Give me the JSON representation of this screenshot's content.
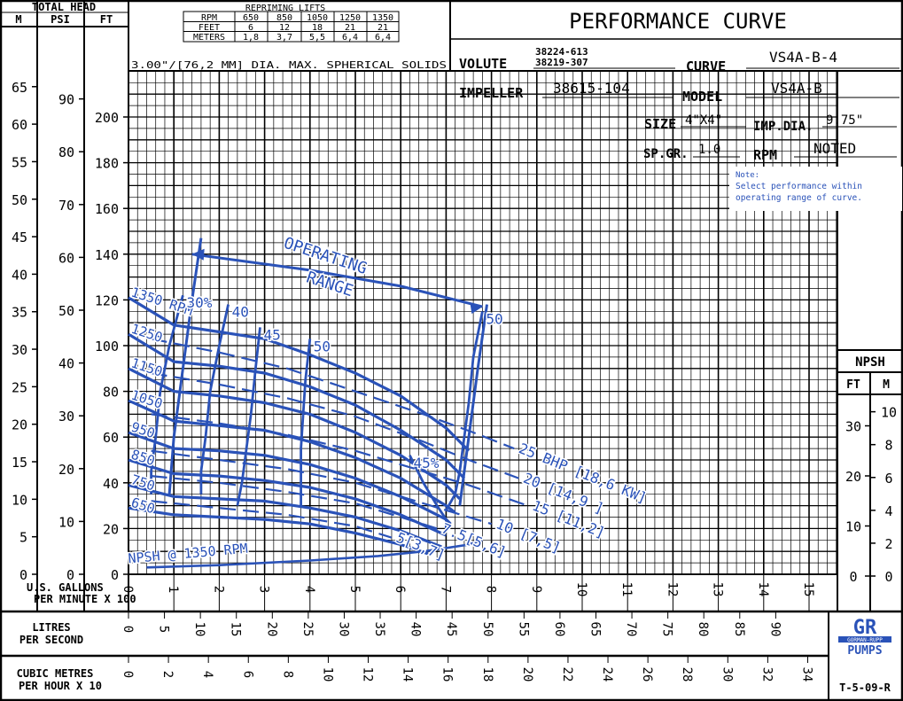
{
  "header": {
    "total_head": "TOTAL HEAD",
    "unit_m": "M",
    "unit_psi": "PSI",
    "unit_ft": "FT"
  },
  "repriming": {
    "title": "REPRIMING LIFTS",
    "row_rpm_label": "RPM",
    "row_feet_label": "FEET",
    "row_meters_label": "METERS",
    "rpm": [
      "650",
      "850",
      "1050",
      "1250",
      "1350"
    ],
    "feet": [
      "6",
      "12",
      "18",
      "21",
      "21"
    ],
    "meters": [
      "1,8",
      "3,7",
      "5,5",
      "6,4",
      "6,4"
    ],
    "solids_note": "3.00\"/[76,2 MM] DIA. MAX. SPHERICAL SOLIDS"
  },
  "title_block": {
    "title": "PERFORMANCE CURVE",
    "volute_label": "VOLUTE",
    "volute_value_1": "38224-613",
    "volute_value_2": "38219-307",
    "curve_label": "CURVE",
    "curve_value": "VS4A-B-4",
    "impeller_label": "IMPELLER",
    "impeller_value": "38615-104",
    "model_label": "MODEL",
    "model_value": "VS4A-B",
    "size_label": "SIZE",
    "size_value": "4\"X4\"",
    "impdia_label": "IMP.DIA.",
    "impdia_value": "9.75\"",
    "spgr_label": "SP.GR.",
    "spgr_value": "1.0",
    "rpm_label": "RPM",
    "rpm_value": "NOTED",
    "note_title": "Note:",
    "note_line1": "Select performance within",
    "note_line2": "operating range of curve."
  },
  "npsh": {
    "title": "NPSH",
    "unit_ft": "FT",
    "unit_m": "M",
    "ft_ticks": [
      "0",
      "10",
      "20",
      "30"
    ],
    "m_ticks": [
      "0",
      "2",
      "4",
      "6",
      "8",
      "10"
    ]
  },
  "bottom": {
    "gpm_label_1": "U.S. GALLONS",
    "gpm_label_2": "PER MINUTE X 100",
    "lps_label_1": "LITRES",
    "lps_label_2": "PER SECOND",
    "cmh_label_1": "CUBIC METRES",
    "cmh_label_2": "PER HOUR X 10",
    "drawing_no": "T-5-09-R",
    "logo_text": "GR",
    "logo_sub_1": "GORMAN-RUPP",
    "logo_sub_2": "PUMPS"
  },
  "colors": {
    "curve": "#2a52b8",
    "grid": "#000000",
    "background": "#ffffff"
  },
  "chart_data": {
    "type": "line",
    "title": "PERFORMANCE CURVE",
    "xlabel": "U.S. GALLONS PER MINUTE X 100",
    "ylabel": "TOTAL HEAD",
    "xlim": [
      0,
      15.5
    ],
    "ylim": [
      0,
      220
    ],
    "grid": true,
    "x_ticks": [
      0,
      1,
      2,
      3,
      4,
      5,
      6,
      7,
      8,
      9,
      10,
      11,
      12,
      13,
      14,
      15
    ],
    "ft_ticks": [
      0,
      20,
      40,
      60,
      80,
      100,
      120,
      140,
      160,
      180,
      200
    ],
    "m_ticks": [
      0,
      5,
      10,
      15,
      20,
      25,
      30,
      35,
      40,
      45,
      50,
      55,
      60,
      65
    ],
    "psi_ticks": [
      0,
      10,
      20,
      30,
      40,
      50,
      60,
      70,
      80,
      90
    ],
    "lps_ticks": [
      0,
      5,
      10,
      15,
      20,
      25,
      30,
      35,
      40,
      45,
      50,
      55,
      60,
      65,
      70,
      75,
      80,
      85,
      90
    ],
    "cmh_ticks": [
      0,
      2,
      4,
      6,
      8,
      10,
      12,
      14,
      16,
      18,
      20,
      22,
      24,
      26,
      28,
      30,
      32,
      34
    ],
    "speed_curves": [
      {
        "label": "1350 RPM",
        "points": [
          [
            0,
            121
          ],
          [
            1,
            109
          ],
          [
            2,
            106
          ],
          [
            3,
            103
          ],
          [
            4,
            96
          ],
          [
            5,
            88
          ],
          [
            6,
            78
          ],
          [
            7,
            64
          ],
          [
            7.5,
            54
          ]
        ]
      },
      {
        "label": "1250",
        "points": [
          [
            0,
            105
          ],
          [
            1,
            93
          ],
          [
            2,
            91
          ],
          [
            3,
            88
          ],
          [
            4,
            82
          ],
          [
            5,
            74
          ],
          [
            6,
            63
          ],
          [
            7,
            50
          ],
          [
            7.4,
            42
          ]
        ]
      },
      {
        "label": "1150",
        "points": [
          [
            0,
            90
          ],
          [
            1,
            80
          ],
          [
            2,
            78
          ],
          [
            3,
            75
          ],
          [
            4,
            70
          ],
          [
            5,
            62
          ],
          [
            6,
            52
          ],
          [
            7,
            39
          ],
          [
            7.3,
            33
          ]
        ]
      },
      {
        "label": "1050",
        "points": [
          [
            0,
            76
          ],
          [
            1,
            67
          ],
          [
            2,
            65
          ],
          [
            3,
            63
          ],
          [
            4,
            58
          ],
          [
            5,
            51
          ],
          [
            6,
            42
          ],
          [
            7,
            30
          ],
          [
            7.2,
            27
          ]
        ]
      },
      {
        "label": "950",
        "points": [
          [
            0,
            62
          ],
          [
            1,
            55
          ],
          [
            2,
            54
          ],
          [
            3,
            52
          ],
          [
            4,
            48
          ],
          [
            5,
            42
          ],
          [
            6,
            34
          ],
          [
            7,
            24
          ],
          [
            7.1,
            22
          ]
        ]
      },
      {
        "label": "850",
        "points": [
          [
            0,
            50
          ],
          [
            1,
            44
          ],
          [
            2,
            43
          ],
          [
            3,
            41
          ],
          [
            4,
            38
          ],
          [
            5,
            33
          ],
          [
            6,
            26
          ],
          [
            7,
            17
          ]
        ]
      },
      {
        "label": "750",
        "points": [
          [
            0,
            39
          ],
          [
            1,
            34
          ],
          [
            2,
            33
          ],
          [
            3,
            32
          ],
          [
            4,
            29
          ],
          [
            5,
            25
          ],
          [
            6,
            19
          ],
          [
            6.9,
            12
          ]
        ]
      },
      {
        "label": "650",
        "points": [
          [
            0,
            29
          ],
          [
            1,
            26
          ],
          [
            2,
            25
          ],
          [
            3,
            24
          ],
          [
            4,
            22
          ],
          [
            5,
            18
          ],
          [
            6,
            13
          ],
          [
            6.6,
            9
          ]
        ]
      }
    ],
    "efficiency_curves": [
      {
        "label": "30%",
        "points": [
          [
            1.2,
            122
          ],
          [
            0.9,
            100
          ],
          [
            0.7,
            80
          ],
          [
            0.6,
            60
          ],
          [
            0.5,
            45
          ],
          [
            0.5,
            35
          ]
        ]
      },
      {
        "label": "40",
        "points": [
          [
            2.2,
            118
          ],
          [
            2,
            100
          ],
          [
            1.8,
            80
          ],
          [
            1.7,
            60
          ],
          [
            1.6,
            45
          ],
          [
            1.6,
            35
          ]
        ]
      },
      {
        "label": "45",
        "points": [
          [
            2.9,
            108
          ],
          [
            2.8,
            90
          ],
          [
            2.7,
            70
          ],
          [
            2.6,
            55
          ],
          [
            2.5,
            40
          ],
          [
            2.4,
            30
          ]
        ]
      },
      {
        "label": "50",
        "points": [
          [
            4.0,
            103
          ],
          [
            3.9,
            85
          ],
          [
            3.85,
            70
          ],
          [
            3.8,
            55
          ],
          [
            3.8,
            40
          ],
          [
            3.8,
            30
          ]
        ]
      },
      {
        "label": "45%",
        "points": [
          [
            6.2,
            52
          ],
          [
            6.5,
            40
          ],
          [
            6.8,
            30
          ],
          [
            7.0,
            24
          ],
          [
            7.0,
            20
          ]
        ]
      },
      {
        "label": "50",
        "points": [
          [
            7.8,
            115
          ],
          [
            7.6,
            95
          ],
          [
            7.5,
            75
          ],
          [
            7.4,
            60
          ],
          [
            7.3,
            45
          ],
          [
            7.2,
            35
          ],
          [
            7.0,
            28
          ]
        ]
      }
    ],
    "power_curves": [
      {
        "label": "25 BHP [18,6 KW]",
        "points": [
          [
            0.5,
            103
          ],
          [
            2,
            97
          ],
          [
            3.5,
            90
          ],
          [
            5,
            80
          ],
          [
            6.5,
            70
          ],
          [
            7.6,
            62
          ],
          [
            8.5,
            55
          ]
        ]
      },
      {
        "label": "20 [14,9 ]",
        "points": [
          [
            0.5,
            88
          ],
          [
            2,
            83
          ],
          [
            3.5,
            77
          ],
          [
            5,
            69
          ],
          [
            6.5,
            58
          ],
          [
            7.5,
            50
          ],
          [
            8.6,
            42
          ]
        ]
      },
      {
        "label": "15 [11,2]",
        "points": [
          [
            0.5,
            70
          ],
          [
            2,
            66
          ],
          [
            3.5,
            61
          ],
          [
            5,
            54
          ],
          [
            6.5,
            45
          ],
          [
            7.5,
            39
          ],
          [
            8.8,
            30
          ]
        ]
      },
      {
        "label": "10 [7,5]",
        "points": [
          [
            0.5,
            54
          ],
          [
            2,
            50
          ],
          [
            3.5,
            46
          ],
          [
            5,
            40
          ],
          [
            6.5,
            31
          ],
          [
            7.5,
            25
          ],
          [
            8.0,
            22
          ]
        ]
      },
      {
        "label": "7.5[5,6]",
        "points": [
          [
            0.5,
            43
          ],
          [
            2,
            40
          ],
          [
            3.5,
            36
          ],
          [
            5,
            31
          ],
          [
            6,
            25
          ],
          [
            6.8,
            20
          ]
        ]
      },
      {
        "label": "5[3,7]",
        "points": [
          [
            0.5,
            32
          ],
          [
            2,
            29
          ],
          [
            3.5,
            26
          ],
          [
            5,
            21
          ],
          [
            5.8,
            16
          ]
        ]
      }
    ],
    "npsh_curve": {
      "label": "NPSH @ 1350 RPM",
      "points": [
        [
          0.4,
          3
        ],
        [
          2,
          4
        ],
        [
          4,
          6
        ],
        [
          5.5,
          8
        ],
        [
          6.5,
          10
        ],
        [
          7.5,
          13
        ],
        [
          7.8,
          15
        ]
      ]
    },
    "operating_range": {
      "label": "OPERATING RANGE",
      "left_limit": [
        [
          1.6,
          147
        ],
        [
          1.4,
          120
        ],
        [
          1.2,
          90
        ],
        [
          1.0,
          60
        ],
        [
          0.9,
          35
        ]
      ],
      "upper_boundary": [
        [
          1.4,
          140
        ],
        [
          4,
          133
        ],
        [
          6,
          126
        ],
        [
          7.8,
          117
        ]
      ],
      "right_limit": [
        [
          7.9,
          118
        ],
        [
          7.7,
          90
        ],
        [
          7.5,
          60
        ],
        [
          7.3,
          30
        ]
      ]
    }
  }
}
